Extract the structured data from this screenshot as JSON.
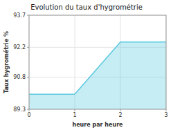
{
  "chart_data": {
    "type": "area",
    "title": "Evolution du taux d'hygrométrie",
    "x_label": "heure par heure",
    "y_label": "Taux hygrométrie %",
    "x": [
      0,
      1,
      2,
      3
    ],
    "values": [
      90.0,
      90.0,
      92.45,
      92.45
    ],
    "color": "#5bc8e0",
    "xlim": [
      0,
      3
    ],
    "ylim": [
      89.3,
      93.7
    ],
    "xticks": [
      0,
      1,
      2,
      3
    ],
    "yticks": [
      89.3,
      90.8,
      92.2,
      93.7
    ],
    "grid": true
  }
}
